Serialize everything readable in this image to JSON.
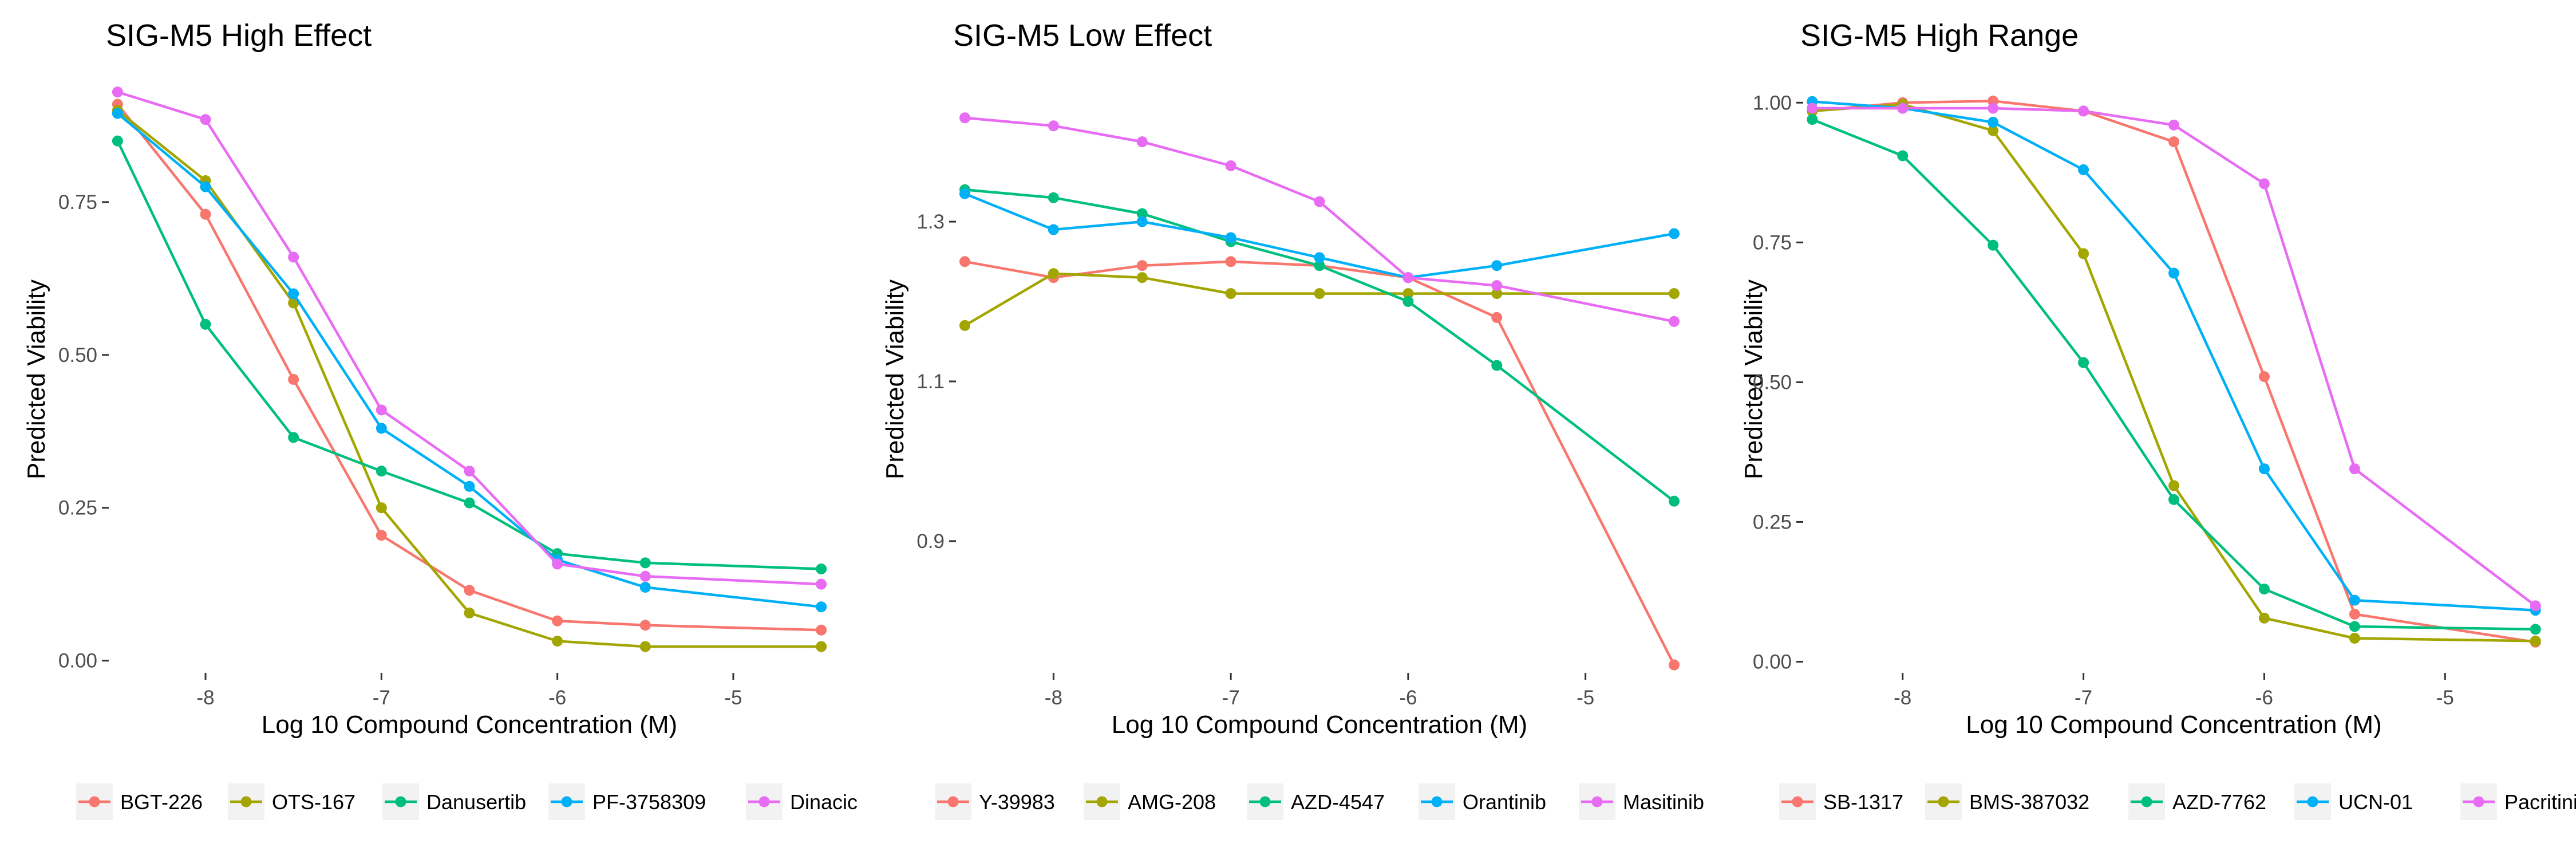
{
  "chart_data": [
    {
      "type": "line",
      "title": "SIG-M5 High Effect",
      "xlabel": "Log 10 Compound Concentration (M)",
      "ylabel": "Predicted Viability",
      "x": [
        -8.5,
        -8,
        -7.5,
        -7,
        -6.5,
        -6,
        -5.5,
        -4.5
      ],
      "xlim": [
        -8.55,
        -4.45
      ],
      "ylim": [
        -0.02,
        0.94
      ],
      "xticks": [
        -8,
        -7,
        -6,
        -5
      ],
      "xtick_labels": [
        "-8",
        "-7",
        "-6",
        "-5"
      ],
      "yticks": [
        0,
        0.25,
        0.5,
        0.75
      ],
      "ytick_labels": [
        "0.00",
        "0.25",
        "0.50",
        "0.75"
      ],
      "grid": false,
      "legend_position": "bottom",
      "series": [
        {
          "name": "BGT-226",
          "color": "#F8766D",
          "values": [
            0.91,
            0.73,
            0.46,
            0.205,
            0.115,
            0.065,
            0.058,
            0.05
          ]
        },
        {
          "name": "OTS-167",
          "color": "#A3A500",
          "values": [
            0.9,
            0.785,
            0.585,
            0.25,
            0.078,
            0.032,
            0.023,
            0.023
          ]
        },
        {
          "name": "Danusertib",
          "color": "#00BF7D",
          "values": [
            0.85,
            0.55,
            0.365,
            0.31,
            0.258,
            0.175,
            0.16,
            0.15
          ]
        },
        {
          "name": "PF-3758309",
          "color": "#00B0F6",
          "values": [
            0.895,
            0.775,
            0.6,
            0.38,
            0.285,
            0.165,
            0.12,
            0.088
          ]
        },
        {
          "name": "Dinacicl",
          "color": "#E76BF3",
          "values": [
            0.93,
            0.885,
            0.66,
            0.41,
            0.31,
            0.158,
            0.138,
            0.125
          ]
        }
      ]
    },
    {
      "type": "line",
      "title": "SIG-M5 Low Effect",
      "xlabel": "Log 10 Compound Concentration (M)",
      "ylabel": "Predicted Viability",
      "x": [
        -8.5,
        -8,
        -7.5,
        -7,
        -6.5,
        -6,
        -5.5,
        -4.5
      ],
      "xlim": [
        -8.55,
        -4.45
      ],
      "ylim": [
        0.735,
        1.47
      ],
      "xticks": [
        -8,
        -7,
        -6,
        -5
      ],
      "xtick_labels": [
        "-8",
        "-7",
        "-6",
        "-5"
      ],
      "yticks": [
        0.9,
        1.1,
        1.3
      ],
      "ytick_labels": [
        "0.9",
        "1.1",
        "1.3"
      ],
      "grid": false,
      "legend_position": "bottom",
      "series": [
        {
          "name": "Y-39983",
          "color": "#F8766D",
          "values": [
            1.25,
            1.23,
            1.245,
            1.25,
            1.245,
            1.23,
            1.18,
            0.745
          ]
        },
        {
          "name": "AMG-208",
          "color": "#A3A500",
          "values": [
            1.17,
            1.235,
            1.23,
            1.21,
            1.21,
            1.21,
            1.21,
            1.21
          ]
        },
        {
          "name": "AZD-4547",
          "color": "#00BF7D",
          "values": [
            1.34,
            1.33,
            1.31,
            1.275,
            1.245,
            1.2,
            1.12,
            0.95
          ]
        },
        {
          "name": "Orantinib",
          "color": "#00B0F6",
          "values": [
            1.335,
            1.29,
            1.3,
            1.28,
            1.255,
            1.23,
            1.245,
            1.285
          ]
        },
        {
          "name": "Masitinib",
          "color": "#E76BF3",
          "values": [
            1.43,
            1.42,
            1.4,
            1.37,
            1.325,
            1.23,
            1.22,
            1.175
          ]
        }
      ]
    },
    {
      "type": "line",
      "title": "SIG-M5 High Range",
      "xlabel": "Log 10 Compound Concentration (M)",
      "ylabel": "Predicted Viability",
      "x": [
        -8.5,
        -8,
        -7.5,
        -7,
        -6.5,
        -6,
        -5.5,
        -4.5
      ],
      "xlim": [
        -8.55,
        -4.45
      ],
      "ylim": [
        -0.02,
        1.03
      ],
      "xticks": [
        -8,
        -7,
        -6,
        -5
      ],
      "xtick_labels": [
        "-8",
        "-7",
        "-6",
        "-5"
      ],
      "yticks": [
        0,
        0.25,
        0.5,
        0.75,
        1.0
      ],
      "ytick_labels": [
        "0.00",
        "0.25",
        "0.50",
        "0.75",
        "1.00"
      ],
      "grid": false,
      "legend_position": "bottom",
      "series": [
        {
          "name": "SB-1317",
          "color": "#F8766D",
          "values": [
            0.985,
            1.0,
            1.003,
            0.985,
            0.93,
            0.51,
            0.085,
            0.035
          ]
        },
        {
          "name": "BMS-387032",
          "color": "#A3A500",
          "values": [
            0.985,
            0.997,
            0.95,
            0.73,
            0.315,
            0.078,
            0.042,
            0.037
          ]
        },
        {
          "name": "AZD-7762",
          "color": "#00BF7D",
          "values": [
            0.97,
            0.905,
            0.745,
            0.535,
            0.29,
            0.13,
            0.063,
            0.058
          ]
        },
        {
          "name": "UCN-01",
          "color": "#00B0F6",
          "values": [
            1.002,
            0.99,
            0.965,
            0.88,
            0.695,
            0.345,
            0.11,
            0.092
          ]
        },
        {
          "name": "Pacritinib",
          "color": "#E76BF3",
          "values": [
            0.99,
            0.99,
            0.99,
            0.985,
            0.96,
            0.855,
            0.345,
            0.1
          ]
        }
      ]
    }
  ]
}
